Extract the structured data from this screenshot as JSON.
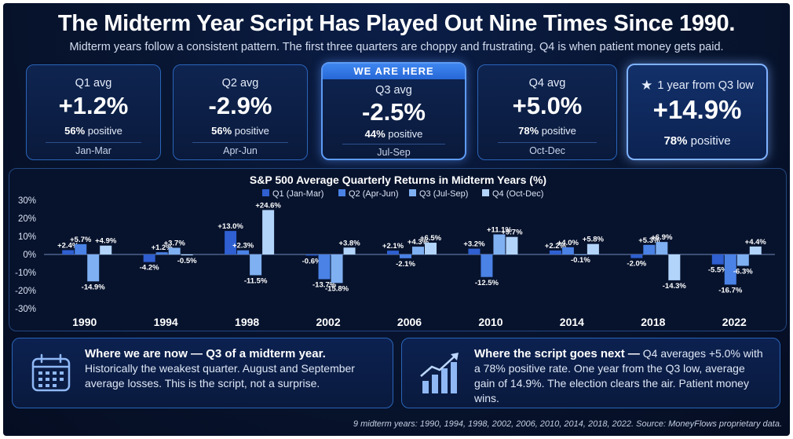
{
  "title": "The Midterm Year Script Has Played Out Nine Times Since 1990.",
  "subtitle": "Midterm years follow a consistent pattern. The first three quarters are choppy and frustrating. Q4 is when patient money gets paid.",
  "cards": [
    {
      "label": "Q1 avg",
      "value": "+1.2%",
      "pct": "56%",
      "pos_text": "positive",
      "months": "Jan-Mar"
    },
    {
      "label": "Q2 avg",
      "value": "-2.9%",
      "pct": "56%",
      "pos_text": "positive",
      "months": "Apr-Jun"
    },
    {
      "badge": "WE ARE HERE",
      "label": "Q3 avg",
      "value": "-2.5%",
      "pct": "44%",
      "pos_text": "positive",
      "months": "Jul-Sep"
    },
    {
      "label": "Q4 avg",
      "value": "+5.0%",
      "pct": "78%",
      "pos_text": "positive",
      "months": "Oct-Dec"
    },
    {
      "label": "1 year from Q3 low",
      "value": "+14.9%",
      "pct": "78%",
      "pos_text": "positive"
    }
  ],
  "chart_data": {
    "type": "bar",
    "title": "S&P 500 Average Quarterly Returns in Midterm Years (%)",
    "categories": [
      "1990",
      "1994",
      "1998",
      "2002",
      "2006",
      "2010",
      "2014",
      "2018",
      "2022"
    ],
    "series": [
      {
        "name": "Q1 (Jan-Mar)",
        "color": "#2f5fd0",
        "values": [
          2.4,
          -4.2,
          13.0,
          -0.6,
          2.1,
          3.2,
          2.2,
          -2.0,
          -5.5
        ]
      },
      {
        "name": "Q2 (Apr-Jun)",
        "color": "#4a82e6",
        "values": [
          5.7,
          1.2,
          2.3,
          -13.7,
          -2.1,
          -12.5,
          4.0,
          5.3,
          -16.7
        ]
      },
      {
        "name": "Q3 (Jul-Sep)",
        "color": "#7fb0f2",
        "values": [
          -14.9,
          3.7,
          -11.5,
          -15.8,
          4.3,
          11.1,
          -0.1,
          6.9,
          -6.3
        ]
      },
      {
        "name": "Q4 (Oct-Dec)",
        "color": "#b2d4fb",
        "values": [
          4.9,
          -0.5,
          24.6,
          3.8,
          6.5,
          9.7,
          5.8,
          -14.3,
          4.4
        ]
      }
    ],
    "data_labels": [
      [
        "+2.4%",
        "+5.7%",
        "-14.9%",
        "+4.9%"
      ],
      [
        "-4.2%",
        "+1.2%",
        "+3.7%",
        "-0.5%"
      ],
      [
        "+13.0%",
        "+2.3%",
        "-11.5%",
        "+24.6%"
      ],
      [
        "-0.6%",
        "-13.7%",
        "-15.8%",
        "+3.8%"
      ],
      [
        "+2.1%",
        "-2.1%",
        "+4.3%",
        "+6.5%"
      ],
      [
        "+3.2%",
        "-12.5%",
        "+11.1%",
        "+9.7%"
      ],
      [
        "+2.2%",
        "+4.0%",
        "-0.1%",
        "+5.8%"
      ],
      [
        "-2.0%",
        "+5.3%",
        "+6.9%",
        "-14.3%"
      ],
      [
        "-5.5%",
        "-16.7%",
        "-6.3%",
        "+4.4%"
      ]
    ],
    "ylim": [
      -30,
      30
    ],
    "yticks": [
      30,
      20,
      10,
      0,
      -10,
      -20,
      -30
    ],
    "ytick_labels": [
      "30%",
      "20%",
      "10%",
      "0%",
      "-10%",
      "-20%",
      "-30%"
    ],
    "legend_position": "top-center",
    "grid": false
  },
  "panel1": {
    "icon": "calendar-icon",
    "head": "Where we are now — Q3 of a midterm year.",
    "body": "Historically the weakest quarter. August and September average losses. This is the script, not a surprise."
  },
  "panel2": {
    "icon": "growth-chart-icon",
    "head": "Where the script goes next —",
    "body": "Q4 averages +5.0% with a 78% positive rate. One year from the Q3 low, average gain of 14.9%. The election clears the air. Patient money wins."
  },
  "footer": "9 midterm years: 1990, 1994, 1998, 2002, 2006, 2010, 2014, 2018, 2022.  Source: MoneyFlows proprietary data."
}
